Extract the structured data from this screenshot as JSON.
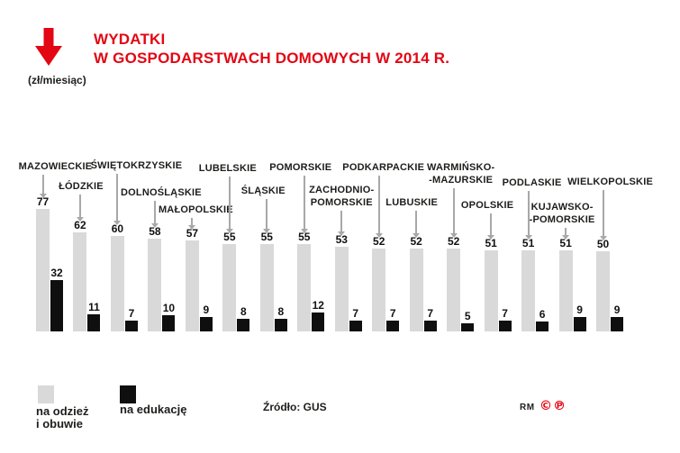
{
  "header": {
    "title_line1": "WYDATKI",
    "title_line2": "W GOSPODARSTWACH DOMOWYCH W 2014 R.",
    "unit": "(zł/miesiąc)"
  },
  "colors": {
    "accent_red": "#e30613",
    "bar_gray": "#d9d9d9",
    "bar_black": "#0f0f0f",
    "leader_gray": "#a8a8a8",
    "text_dark": "#1d1d1b"
  },
  "legend": {
    "clothing_label": "na odzież\ni obuwie",
    "education_label": "na edukację"
  },
  "source_label": "Źródło: GUS",
  "footer": {
    "brand": "RM",
    "copyright_mark": "©",
    "phonogram_mark": "℗"
  },
  "chart_data": {
    "type": "bar",
    "title": "Wydatki w gospodarstwach domowych w 2014 r.",
    "ylabel": "zł/miesiąc",
    "ylim": [
      0,
      80
    ],
    "grid": false,
    "legend_position": "bottom-left",
    "source": "GUS",
    "categories": [
      "MAZOWIECKIE",
      "ŁÓDZKIE",
      "ŚWIĘTOKRZYSKIE",
      "DOLNOŚLĄSKIE",
      "MAŁOPOLSKIE",
      "LUBELSKIE",
      "ŚLĄSKIE",
      "POMORSKIE",
      "ZACHODNIOPOMORSKIE",
      "PODKARPACKIE",
      "LUBUSKIE",
      "WARMIŃSKO-MAZURSKIE",
      "OPOLSKIE",
      "PODLASKIE",
      "KUJAWSKO-POMORSKIE",
      "WIELKOPOLSKIE"
    ],
    "display_labels": [
      [
        "MAZOWIECKIE"
      ],
      [
        "ŁÓDZKIE"
      ],
      [
        "ŚWIĘTOKRZYSKIE"
      ],
      [
        "DOLNOŚLĄSKIE"
      ],
      [
        "MAŁOPOLSKIE"
      ],
      [
        "LUBELSKIE"
      ],
      [
        "ŚLĄSKIE"
      ],
      [
        "POMORSKIE"
      ],
      [
        "ZACHODNIO-",
        "POMORSKIE"
      ],
      [
        "PODKARPACKIE"
      ],
      [
        "LUBUSKIE"
      ],
      [
        "WARMIŃSKO-",
        "-MAZURSKIE"
      ],
      [
        "OPOLSKIE"
      ],
      [
        "PODLASKIE"
      ],
      [
        "KUJAWSKO-",
        "-POMORSKIE"
      ],
      [
        "WIELKOPOLSKIE"
      ]
    ],
    "series": [
      {
        "name": "na odzież i obuwie",
        "color": "#d9d9d9",
        "values": [
          77,
          62,
          60,
          58,
          57,
          55,
          55,
          55,
          53,
          52,
          52,
          52,
          51,
          51,
          51,
          50
        ]
      },
      {
        "name": "na edukację",
        "color": "#0f0f0f",
        "values": [
          32,
          11,
          7,
          10,
          9,
          8,
          8,
          12,
          7,
          7,
          7,
          5,
          7,
          6,
          9,
          9
        ]
      }
    ]
  }
}
